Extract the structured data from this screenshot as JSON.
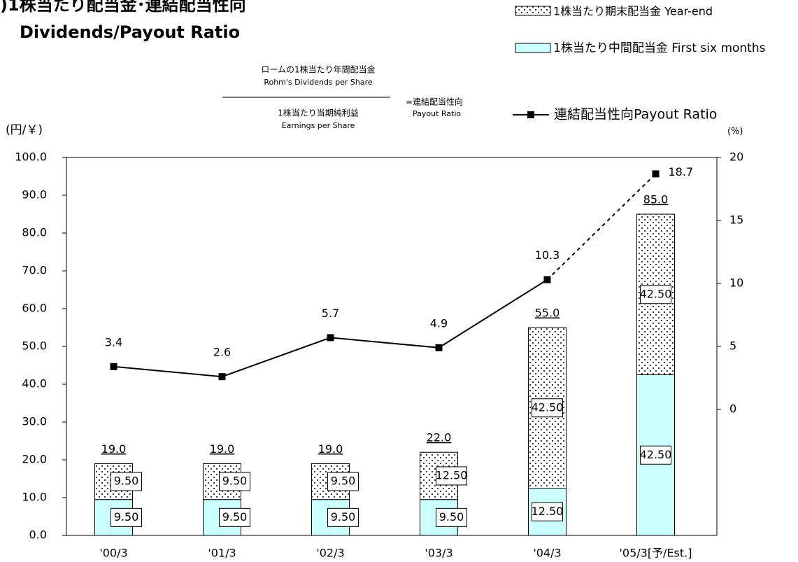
{
  "chart_data": {
    "type": "bar",
    "title": ")1株当たり配当金･連結配当性向",
    "subtitle": "Dividends/Payout Ratio",
    "y_label": "(円/￥)",
    "y2_label": "(%)",
    "annotations": [
      "ロームの1株当たり年間配当金",
      "Rohm's Dividends per Share",
      "1株当たり当期純利益",
      "Earnings per Share",
      "=連結配当性向",
      "Payout Ratio"
    ],
    "categories": [
      "'00/3",
      "'01/3",
      "'02/3",
      "'03/3",
      "'04/3",
      "'05/3[予/Est.]"
    ],
    "series": [
      {
        "name": "1株当たり中間配当金 First six months",
        "color": "#ccffff",
        "values": [
          9.5,
          9.5,
          9.5,
          9.5,
          12.5,
          42.5
        ],
        "value_labels": [
          "9.50",
          "9.50",
          "9.50",
          "9.50",
          "12.50",
          "42.50"
        ]
      },
      {
        "name": "1株当たり期末配当金 Year-end",
        "color": "#ffffff",
        "pattern": "dots",
        "values": [
          9.5,
          9.5,
          9.5,
          12.5,
          42.5,
          42.5
        ],
        "value_labels": [
          "9.50",
          "9.50",
          "9.50",
          "12.50",
          "42.50",
          "42.50"
        ]
      },
      {
        "name": "連結配当性向Payout Ratio",
        "type": "line",
        "axis": "y2",
        "color": "#000000",
        "values": [
          3.4,
          2.6,
          5.7,
          4.9,
          10.3,
          18.7
        ],
        "dashed_last_segment": true
      }
    ],
    "totals": [
      19,
      19,
      19,
      22,
      55,
      85
    ],
    "total_labels": [
      "19.0",
      "19.0",
      "19.0",
      "22.0",
      "55.0",
      "85.0"
    ],
    "ylim": [
      0,
      100
    ],
    "yticks": [
      {
        "value": 0,
        "label": "0.0"
      },
      {
        "value": 10,
        "label": "10.0"
      },
      {
        "value": 20,
        "label": "20.0"
      },
      {
        "value": 30,
        "label": "30.0"
      },
      {
        "value": 40,
        "label": "40.0"
      },
      {
        "value": 50,
        "label": "50.0"
      },
      {
        "value": 60,
        "label": "60.0"
      },
      {
        "value": 70,
        "label": "70.0"
      },
      {
        "value": 80,
        "label": "80.0"
      },
      {
        "value": 90,
        "label": "90.0"
      },
      {
        "value": 100,
        "label": "100.0"
      }
    ],
    "y2lim": [
      -10,
      20
    ],
    "y2ticks": [
      0,
      5,
      10,
      15,
      20
    ]
  }
}
